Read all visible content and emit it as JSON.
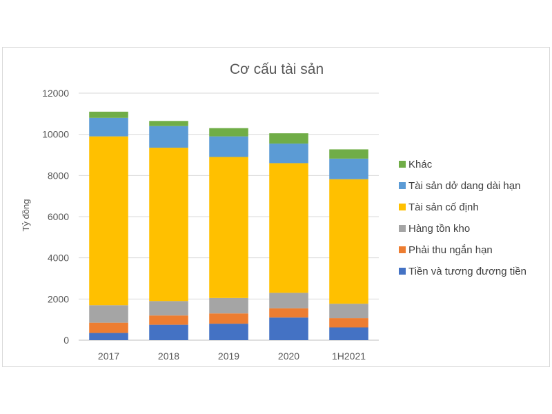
{
  "chart_data": {
    "type": "bar",
    "stacked": true,
    "title": "Cơ cấu tài sản",
    "xlabel": "",
    "ylabel": "Tỷ đồng",
    "ylim": [
      0,
      12000
    ],
    "yticks": [
      "0",
      "2000",
      "4000",
      "6000",
      "8000",
      "10000",
      "12000"
    ],
    "grid": true,
    "legend_position": "right",
    "categories": [
      "2017",
      "2018",
      "2019",
      "2020",
      "1H2021"
    ],
    "series": [
      {
        "name": "Tiền và tương đương tiền",
        "color": "#4472C4",
        "values": [
          350,
          750,
          800,
          1100,
          620
        ]
      },
      {
        "name": "Phải thu ngắn hạn",
        "color": "#ED7D31",
        "values": [
          500,
          450,
          500,
          450,
          450
        ]
      },
      {
        "name": "Hàng tồn kho",
        "color": "#A5A5A5",
        "values": [
          850,
          700,
          750,
          750,
          700
        ]
      },
      {
        "name": "Tài sản cố định",
        "color": "#FFC000",
        "values": [
          8200,
          7450,
          6850,
          6300,
          6050
        ]
      },
      {
        "name": "Tài sản dở dang dài hạn",
        "color": "#5B9BD5",
        "values": [
          900,
          1050,
          1000,
          950,
          1000
        ]
      },
      {
        "name": "Khác",
        "color": "#70AD47",
        "values": [
          300,
          250,
          400,
          500,
          450
        ]
      }
    ]
  }
}
